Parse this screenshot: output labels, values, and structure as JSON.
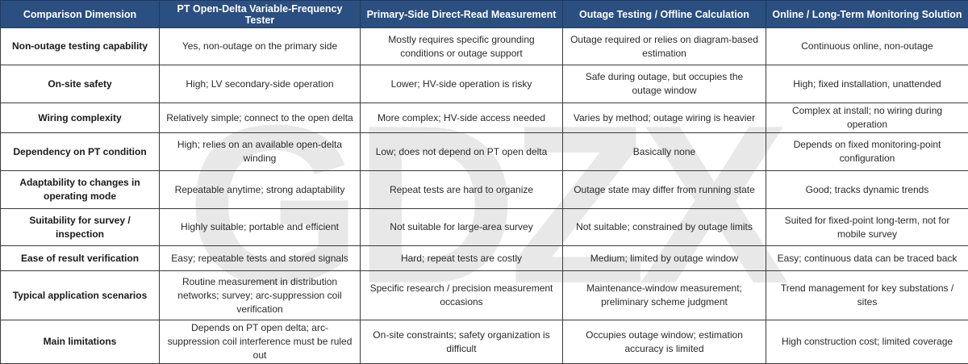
{
  "table": {
    "headers": [
      "Comparison Dimension",
      "PT Open-Delta Variable-Frequency Tester",
      "Primary-Side Direct-Read Measurement",
      "Outage Testing / Offline Calculation",
      "Online / Long-Term Monitoring Solution"
    ],
    "rows": [
      [
        "Non-outage testing capability",
        "Yes, non-outage on the primary side",
        "Mostly requires specific grounding conditions or outage support",
        "Outage required or relies on diagram-based estimation",
        "Continuous online, non-outage"
      ],
      [
        "On-site safety",
        "High; LV secondary-side operation",
        "Lower; HV-side operation is risky",
        "Safe during outage, but occupies the outage window",
        "High; fixed installation, unattended"
      ],
      [
        "Wiring complexity",
        "Relatively simple; connect to the open delta",
        "More complex; HV-side access needed",
        "Varies by method; outage wiring is heavier",
        "Complex at install; no wiring during operation"
      ],
      [
        "Dependency on PT condition",
        "High; relies on an available open-delta winding",
        "Low; does not depend on PT open delta",
        "Basically none",
        "Depends on fixed monitoring-point configuration"
      ],
      [
        "Adaptability to changes in operating mode",
        "Repeatable anytime; strong adaptability",
        "Repeat tests are hard to organize",
        "Outage state may differ from running state",
        "Good; tracks dynamic trends"
      ],
      [
        "Suitability for survey / inspection",
        "Highly suitable; portable and efficient",
        "Not suitable for large-area survey",
        "Not suitable; constrained by outage limits",
        "Suited for fixed-point long-term, not for mobile survey"
      ],
      [
        "Ease of result verification",
        "Easy; repeatable tests and stored signals",
        "Hard; repeat tests are costly",
        "Medium; limited by outage window",
        "Easy; continuous data can be traced back"
      ],
      [
        "Typical application scenarios",
        "Routine measurement in distribution networks; survey; arc-suppression coil verification",
        "Specific research / precision measurement occasions",
        "Maintenance-window measurement; preliminary scheme judgment",
        "Trend management for key substations / sites"
      ],
      [
        "Main limitations",
        "Depends on PT open delta; arc-suppression coil interference must be ruled out",
        "On-site constraints; safety organization is difficult",
        "Occupies outage window; estimation accuracy is limited",
        "High construction cost; limited coverage"
      ]
    ]
  },
  "watermark": {
    "text": "GDZX",
    "color": "#e6e6e6"
  }
}
